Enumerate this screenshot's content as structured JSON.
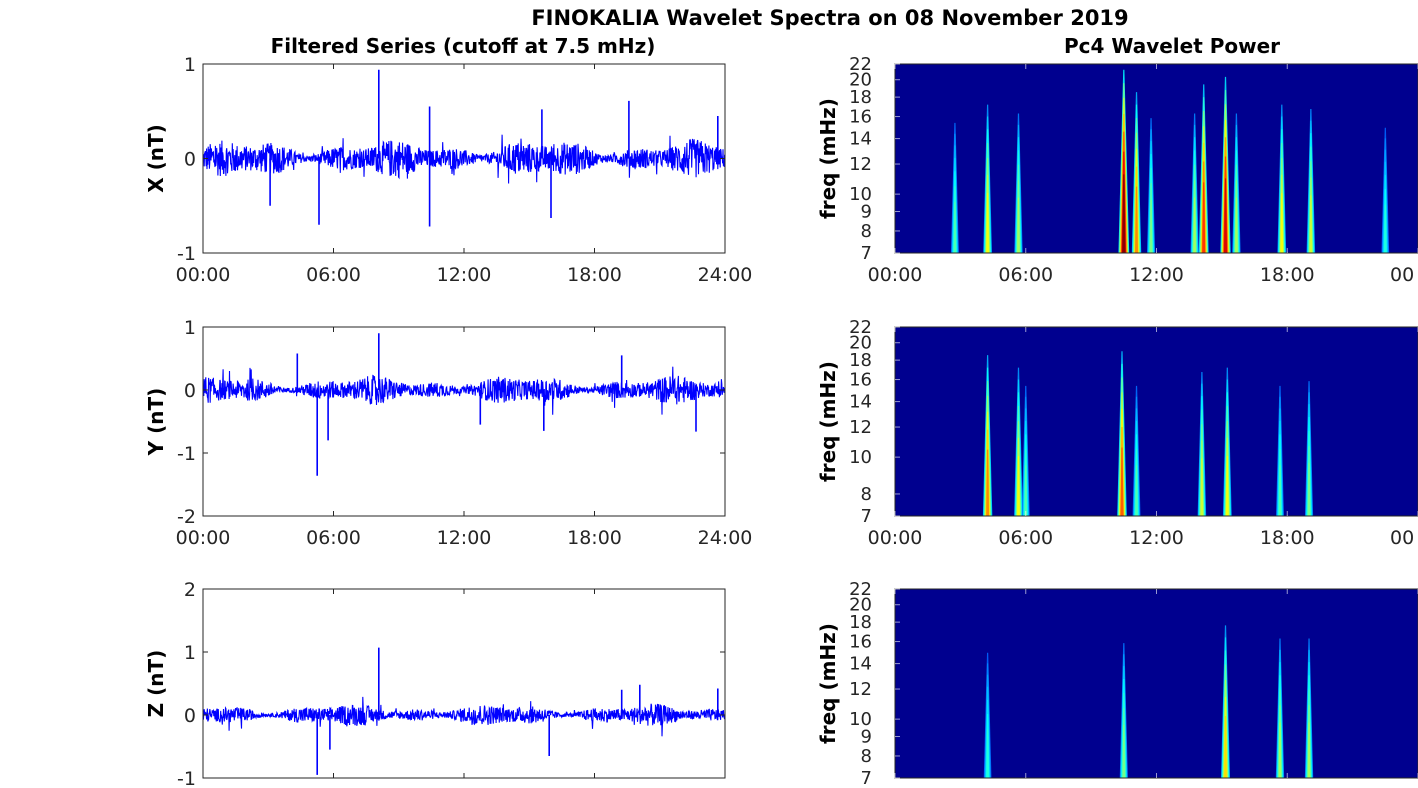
{
  "figure_title": "FINOKALIA Wavelet Spectra on 08 November 2019",
  "colors": {
    "series": "#0000ff",
    "wavelet_background": "#00008f",
    "axes": "#262626"
  },
  "chart_data": [
    {
      "type": "line",
      "title": "Filtered Series (cutoff at 7.5 mHz)",
      "ylabel": "X (nT)",
      "xlim": [
        "00:00",
        "24:00"
      ],
      "ylim": [
        -1,
        1
      ],
      "yticks": [
        "1",
        "0",
        "-1"
      ],
      "xticks": [
        "00:00",
        "06:00",
        "12:00",
        "18:00",
        "24:00"
      ],
      "series": [
        {
          "noise_envelope": 0.15,
          "spikes": [
            {
              "x": "08:05",
              "y": 0.94
            },
            {
              "x": "05:20",
              "y": -0.7
            },
            {
              "x": "10:25",
              "y": -0.72
            },
            {
              "x": "10:25",
              "y": 0.55
            },
            {
              "x": "15:35",
              "y": 0.52
            },
            {
              "x": "19:35",
              "y": 0.61
            },
            {
              "x": "16:00",
              "y": -0.63
            },
            {
              "x": "23:40",
              "y": 0.45
            },
            {
              "x": "03:05",
              "y": -0.5
            }
          ]
        }
      ]
    },
    {
      "type": "line",
      "ylabel": "Y (nT)",
      "xlim": [
        "00:00",
        "24:00"
      ],
      "ylim": [
        -2,
        1
      ],
      "yticks": [
        "1",
        "0",
        "-1",
        "-2"
      ],
      "xticks": [
        "00:00",
        "06:00",
        "12:00",
        "18:00",
        "24:00"
      ],
      "series": [
        {
          "noise_envelope": 0.17,
          "spikes": [
            {
              "x": "08:05",
              "y": 0.9
            },
            {
              "x": "05:15",
              "y": -1.36
            },
            {
              "x": "05:45",
              "y": -0.8
            },
            {
              "x": "04:20",
              "y": 0.58
            },
            {
              "x": "15:40",
              "y": -0.65
            },
            {
              "x": "19:15",
              "y": 0.55
            },
            {
              "x": "22:40",
              "y": -0.66
            },
            {
              "x": "12:45",
              "y": -0.55
            }
          ]
        }
      ]
    },
    {
      "type": "line",
      "ylabel": "Z (nT)",
      "xlim": [
        "00:00",
        "24:00"
      ],
      "ylim": [
        -1,
        2
      ],
      "yticks": [
        "2",
        "1",
        "0",
        "-1"
      ],
      "series": [
        {
          "noise_envelope": 0.13,
          "spikes": [
            {
              "x": "08:05",
              "y": 1.07
            },
            {
              "x": "05:15",
              "y": -0.95
            },
            {
              "x": "05:50",
              "y": -0.55
            },
            {
              "x": "15:55",
              "y": -0.65
            },
            {
              "x": "20:05",
              "y": 0.48
            },
            {
              "x": "19:15",
              "y": 0.4
            },
            {
              "x": "23:40",
              "y": 0.42
            }
          ]
        }
      ]
    },
    {
      "type": "heatmap",
      "title": "Pc4 Wavelet Power",
      "ylabel": "freq (mHz)",
      "xlim": [
        "00:00",
        "24:00"
      ],
      "ylim": [
        7,
        22
      ],
      "yscale": "log",
      "yticks": [
        22,
        20,
        18,
        16,
        14,
        12,
        10,
        9,
        8,
        7
      ],
      "xticks": [
        "00:00",
        "06:00",
        "12:00",
        "18:00",
        "00"
      ],
      "bursts": [
        {
          "x": "02:45",
          "intensity": 0.35
        },
        {
          "x": "04:15",
          "intensity": 0.55
        },
        {
          "x": "05:40",
          "intensity": 0.45
        },
        {
          "x": "10:30",
          "intensity": 1.0
        },
        {
          "x": "11:05",
          "intensity": 0.7
        },
        {
          "x": "11:45",
          "intensity": 0.4
        },
        {
          "x": "13:45",
          "intensity": 0.45
        },
        {
          "x": "14:10",
          "intensity": 0.8
        },
        {
          "x": "15:10",
          "intensity": 0.9
        },
        {
          "x": "15:40",
          "intensity": 0.45
        },
        {
          "x": "17:45",
          "intensity": 0.55
        },
        {
          "x": "19:05",
          "intensity": 0.5
        },
        {
          "x": "22:30",
          "intensity": 0.3
        }
      ]
    },
    {
      "type": "heatmap",
      "ylabel": "freq (mHz)",
      "xlim": [
        "00:00",
        "24:00"
      ],
      "ylim": [
        7,
        22
      ],
      "yscale": "log",
      "yticks": [
        22,
        20,
        18,
        16,
        14,
        12,
        10,
        8,
        7
      ],
      "xticks": [
        "00:00",
        "06:00",
        "12:00",
        "18:00",
        "00"
      ],
      "bursts": [
        {
          "x": "04:15",
          "intensity": 0.7
        },
        {
          "x": "05:40",
          "intensity": 0.55
        },
        {
          "x": "06:00",
          "intensity": 0.35
        },
        {
          "x": "10:25",
          "intensity": 0.75
        },
        {
          "x": "11:05",
          "intensity": 0.35
        },
        {
          "x": "14:05",
          "intensity": 0.5
        },
        {
          "x": "15:15",
          "intensity": 0.55
        },
        {
          "x": "17:40",
          "intensity": 0.35
        },
        {
          "x": "19:00",
          "intensity": 0.4
        }
      ]
    },
    {
      "type": "heatmap",
      "ylabel": "freq (mHz)",
      "xlim": [
        "00:00",
        "24:00"
      ],
      "ylim": [
        7,
        22
      ],
      "yscale": "log",
      "yticks": [
        22,
        20,
        18,
        16,
        14,
        12,
        10,
        9,
        8,
        7
      ],
      "bursts": [
        {
          "x": "04:15",
          "intensity": 0.3
        },
        {
          "x": "10:30",
          "intensity": 0.4
        },
        {
          "x": "15:10",
          "intensity": 0.6
        },
        {
          "x": "17:40",
          "intensity": 0.45
        },
        {
          "x": "19:00",
          "intensity": 0.45
        }
      ]
    }
  ]
}
